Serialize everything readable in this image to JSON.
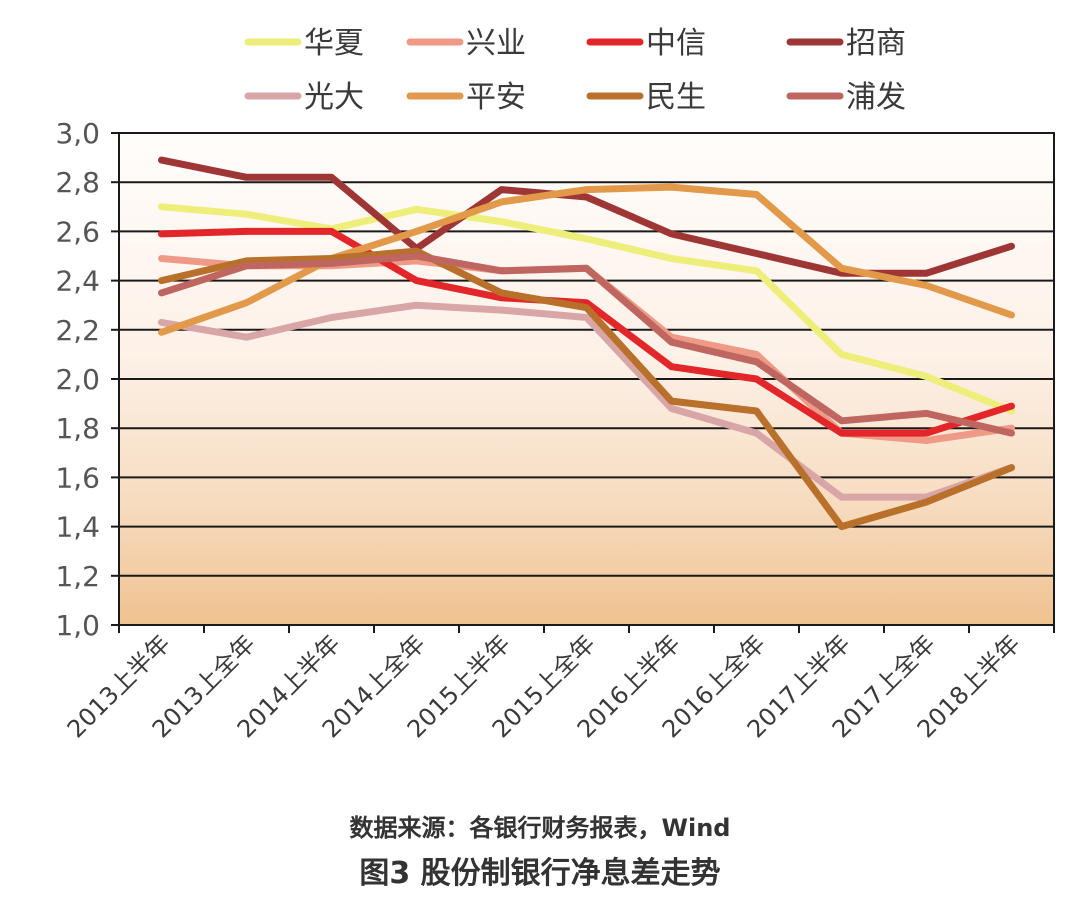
{
  "chart_data": {
    "type": "line",
    "title": "图3 股份制银行净息差走势",
    "source": "数据来源：各银行财务报表，Wind",
    "xlabel": "",
    "ylabel": "",
    "ylim": [
      1.0,
      3.0
    ],
    "yticks": [
      "1.0",
      "1.2",
      "1.4",
      "1.6",
      "1.8",
      "2.0",
      "2.2",
      "2.4",
      "2.6",
      "2.8",
      "3.0"
    ],
    "grid": true,
    "legend_position": "top",
    "categories": [
      "2013上半年",
      "2013上全年",
      "2014上半年",
      "2014上全年",
      "2015上半年",
      "2015上全年",
      "2016上半年",
      "2016上全年",
      "2017上半年",
      "2017上全年",
      "2018上半年"
    ],
    "series": [
      {
        "name": "华夏",
        "color": "#eeee7a",
        "values": [
          2.7,
          2.67,
          2.61,
          2.69,
          2.64,
          2.57,
          2.49,
          2.44,
          2.1,
          2.01,
          1.87
        ]
      },
      {
        "name": "兴业",
        "color": "#ee9a86",
        "values": [
          2.49,
          2.46,
          2.46,
          2.48,
          2.44,
          2.45,
          2.17,
          2.1,
          1.78,
          1.75,
          1.8
        ]
      },
      {
        "name": "中信",
        "color": "#e2262a",
        "values": [
          2.59,
          2.6,
          2.6,
          2.4,
          2.33,
          2.31,
          2.05,
          2.0,
          1.78,
          1.78,
          1.89
        ]
      },
      {
        "name": "招商",
        "color": "#9e3636",
        "values": [
          2.89,
          2.82,
          2.82,
          2.53,
          2.77,
          2.74,
          2.59,
          2.51,
          2.43,
          2.43,
          2.54
        ]
      },
      {
        "name": "光大",
        "color": "#d9a6a8",
        "values": [
          2.23,
          2.17,
          2.25,
          2.3,
          2.28,
          2.25,
          1.88,
          1.78,
          1.52,
          1.52,
          1.64
        ]
      },
      {
        "name": "平安",
        "color": "#e29a4a",
        "values": [
          2.19,
          2.31,
          2.49,
          2.6,
          2.72,
          2.77,
          2.78,
          2.75,
          2.45,
          2.38,
          2.26
        ]
      },
      {
        "name": "民生",
        "color": "#b8702a",
        "values": [
          2.4,
          2.48,
          2.49,
          2.52,
          2.35,
          2.29,
          1.91,
          1.87,
          1.4,
          1.5,
          1.64
        ]
      },
      {
        "name": "浦发",
        "color": "#bf6660",
        "values": [
          2.35,
          2.46,
          2.47,
          2.5,
          2.44,
          2.45,
          2.15,
          2.07,
          1.83,
          1.86,
          1.78
        ]
      }
    ]
  },
  "captions": {
    "source": "数据来源：各银行财务报表，Wind",
    "title": "图3 股份制银行净息差走势"
  }
}
